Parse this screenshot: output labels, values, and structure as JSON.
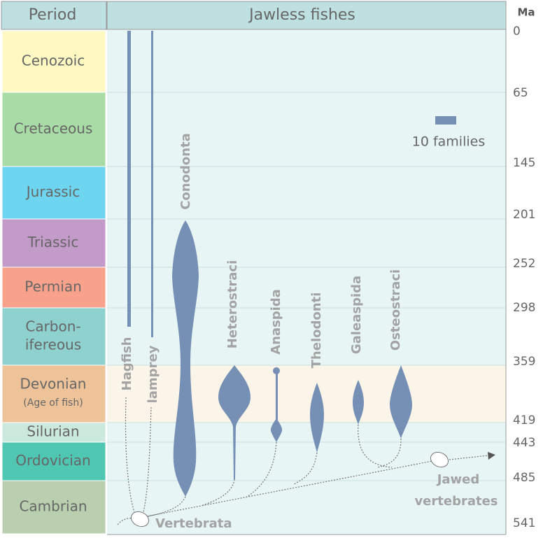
{
  "header": {
    "period": "Period",
    "title": "Jawless fishes",
    "unit": "Ma"
  },
  "periods": [
    {
      "lines": [
        "Cenozoic"
      ]
    },
    {
      "lines": [
        "Cretaceous"
      ]
    },
    {
      "lines": [
        "Jurassic"
      ]
    },
    {
      "lines": [
        "Triassic"
      ]
    },
    {
      "lines": [
        "Permian"
      ]
    },
    {
      "lines": [
        "Carbon-",
        "ifereous"
      ]
    },
    {
      "lines": [
        "Devonian"
      ],
      "note": "(Age of fish)"
    },
    {
      "lines": [
        "Silurian"
      ]
    },
    {
      "lines": [
        "Ordovician"
      ]
    },
    {
      "lines": [
        "Cambrian"
      ]
    }
  ],
  "ages": [
    "0",
    "65",
    "145",
    "201",
    "252",
    "298",
    "359",
    "419",
    "443",
    "485",
    "541"
  ],
  "clades": [
    "Hagfish",
    "lamprey",
    "Conodonta",
    "Heterostraci",
    "Anaspida",
    "Thelodonti",
    "Galeaspida",
    "Osteostraci"
  ],
  "legend": "10 families",
  "nodes": {
    "root": "Vertebrata",
    "jawed": [
      "Jawed",
      "vertebrates"
    ]
  }
}
